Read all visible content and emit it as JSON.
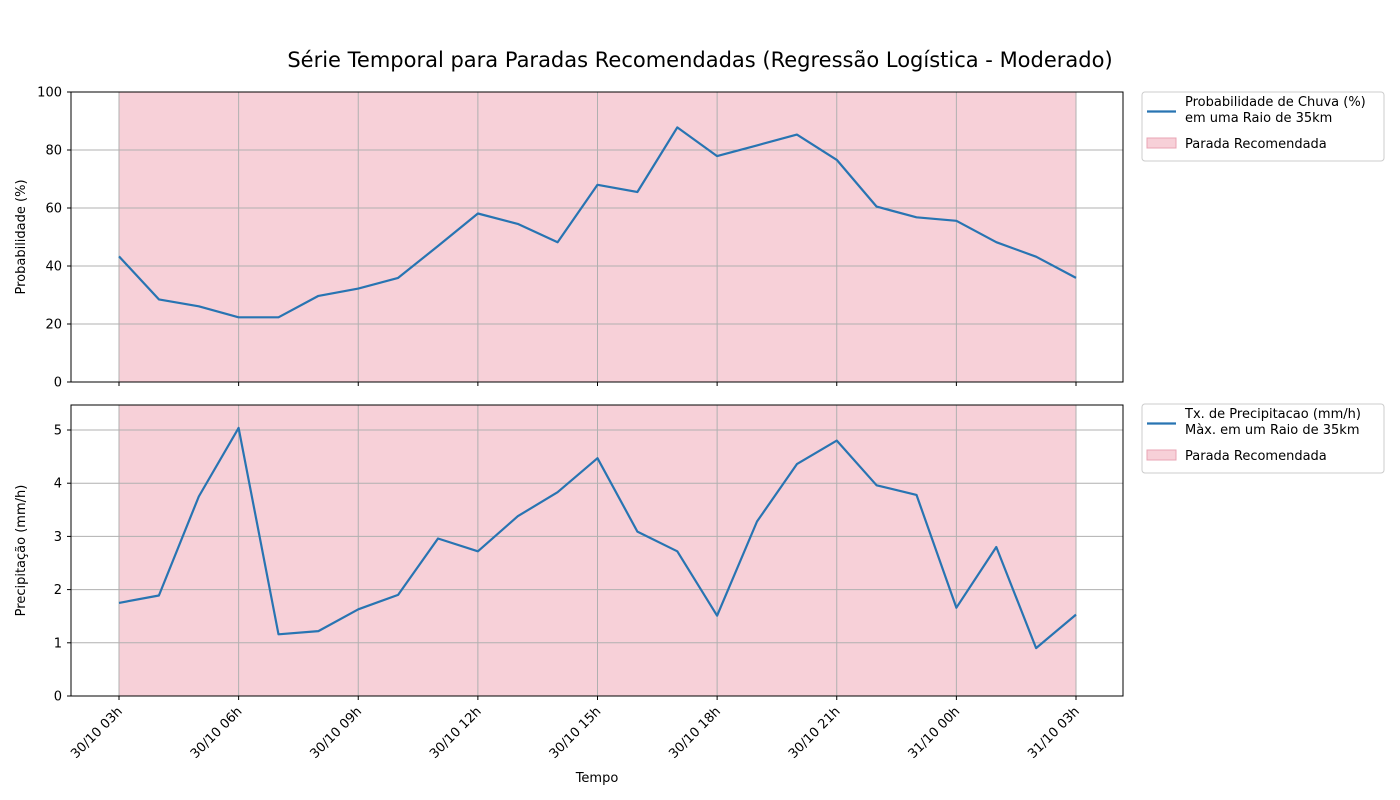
{
  "title": "Série Temporal para Paradas Recomendadas (Regressão Logística - Moderado)",
  "colors": {
    "line": "#2874b2",
    "highlight": "#f7d0d8",
    "highlight_edge": "#e8a4b4",
    "grid": "#b0b0b0"
  },
  "chart_data": [
    {
      "type": "line",
      "ylabel": "Probabilidade (%)",
      "ylim": [
        0,
        100
      ],
      "yticks": [
        0,
        20,
        40,
        60,
        80,
        100
      ],
      "grid": true,
      "legend_position": "outside-top-right",
      "x": [
        "30/10 03h",
        "30/10 04h",
        "30/10 05h",
        "30/10 06h",
        "30/10 07h",
        "30/10 08h",
        "30/10 09h",
        "30/10 10h",
        "30/10 11h",
        "30/10 12h",
        "30/10 13h",
        "30/10 14h",
        "30/10 15h",
        "30/10 16h",
        "30/10 17h",
        "30/10 18h",
        "30/10 19h",
        "30/10 20h",
        "30/10 21h",
        "30/10 22h",
        "30/10 23h",
        "31/10 00h",
        "31/10 01h",
        "31/10 02h",
        "31/10 03h"
      ],
      "series": [
        {
          "name": "Probabilidade de Chuva (%)\n em uma Raio de 35km",
          "values": [
            43.3,
            28.5,
            26.1,
            22.3,
            22.3,
            29.7,
            32.2,
            35.9,
            46.9,
            58.1,
            54.5,
            48.2,
            68.0,
            65.5,
            87.8,
            77.9,
            81.6,
            85.3,
            76.6,
            60.5,
            56.8,
            55.6,
            48.2,
            43.2,
            35.9
          ]
        }
      ],
      "shaded_regions": [
        {
          "name": "Parada Recomendada",
          "from": "30/10 03h",
          "to": "31/10 03h"
        }
      ]
    },
    {
      "type": "line",
      "ylabel": "Precipitação (mm/h)",
      "xlabel": "Tempo",
      "ylim": [
        0,
        5.47
      ],
      "yticks": [
        0,
        1,
        2,
        3,
        4,
        5
      ],
      "grid": true,
      "legend_position": "outside-top-right",
      "x": [
        "30/10 03h",
        "30/10 04h",
        "30/10 05h",
        "30/10 06h",
        "30/10 07h",
        "30/10 08h",
        "30/10 09h",
        "30/10 10h",
        "30/10 11h",
        "30/10 12h",
        "30/10 13h",
        "30/10 14h",
        "30/10 15h",
        "30/10 16h",
        "30/10 17h",
        "30/10 18h",
        "30/10 19h",
        "30/10 20h",
        "30/10 21h",
        "30/10 22h",
        "30/10 23h",
        "31/10 00h",
        "31/10 01h",
        "31/10 02h",
        "31/10 03h"
      ],
      "xticks": [
        "30/10 03h",
        "30/10 06h",
        "30/10 09h",
        "30/10 12h",
        "30/10 15h",
        "30/10 18h",
        "30/10 21h",
        "31/10 00h",
        "31/10 03h"
      ],
      "series": [
        {
          "name": "Tx. de Precipitacao (mm/h)\n Màx. em um Raio de 35km",
          "values": [
            1.75,
            1.89,
            3.75,
            5.04,
            1.16,
            1.22,
            1.63,
            1.9,
            2.96,
            2.72,
            3.38,
            3.83,
            4.47,
            3.09,
            2.72,
            1.51,
            3.28,
            4.36,
            4.8,
            3.96,
            3.78,
            1.66,
            2.8,
            0.9,
            1.53
          ]
        }
      ],
      "shaded_regions": [
        {
          "name": "Parada Recomendada",
          "from": "30/10 03h",
          "to": "31/10 03h"
        }
      ]
    }
  ]
}
